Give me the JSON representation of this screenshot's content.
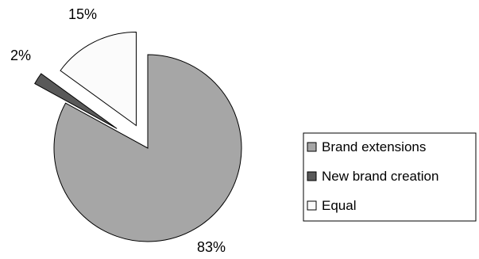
{
  "chart_data": {
    "type": "pie",
    "exploded": true,
    "slices": [
      {
        "name": "Brand extensions",
        "value": 83,
        "label": "83%",
        "color": "#a6a6a6"
      },
      {
        "name": "New brand creation",
        "value": 2,
        "label": "2%",
        "color": "#595959"
      },
      {
        "name": "Equal",
        "value": 15,
        "label": "15%",
        "color": "#fbfbfb"
      }
    ],
    "legend": {
      "placement": "right",
      "entries": [
        "Brand extensions",
        "New brand creation",
        "Equal"
      ]
    }
  }
}
